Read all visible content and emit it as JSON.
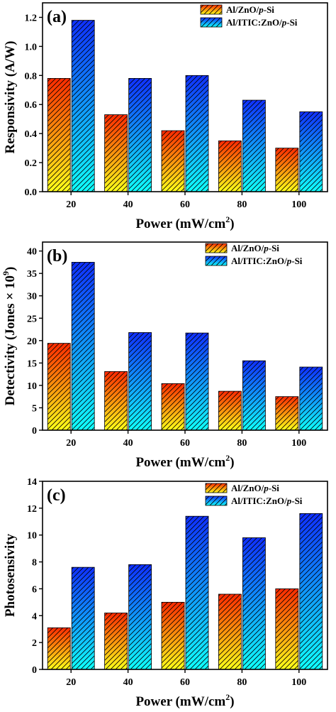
{
  "chart_data": [
    {
      "type": "bar",
      "panel_label": "(a)",
      "categories": [
        "20",
        "40",
        "60",
        "80",
        "100"
      ],
      "series": [
        {
          "name": "Al/ZnO/p-Si",
          "name_prefix": "Al/ZnO/",
          "name_italic": "p",
          "name_suffix": "-Si",
          "values": [
            0.78,
            0.53,
            0.42,
            0.35,
            0.3
          ]
        },
        {
          "name": "Al/ITIC:ZnO/p-Si",
          "name_prefix": "Al/ITIC:ZnO/",
          "name_italic": "p",
          "name_suffix": "-Si",
          "values": [
            1.18,
            0.78,
            0.8,
            0.63,
            0.55
          ]
        }
      ],
      "xlabel": "Power (mW/cm²)",
      "xlabel_main": "Power (mW/cm",
      "xlabel_sup": "2",
      "xlabel_end": ")",
      "ylabel": "Responsivity (A/W)",
      "ylabel_main": "Responsivity (A/W)",
      "ylabel_sup": "",
      "ylabel_end": "",
      "ylim": [
        0,
        1.3
      ],
      "yticks": [
        "0.0",
        "0.2",
        "0.4",
        "0.6",
        "0.8",
        "1.0",
        "1.2"
      ],
      "legend": "top-right",
      "grid": false
    },
    {
      "type": "bar",
      "panel_label": "(b)",
      "categories": [
        "20",
        "40",
        "60",
        "80",
        "100"
      ],
      "series": [
        {
          "name": "Al/ZnO/p-Si",
          "name_prefix": "Al/ZnO/",
          "name_italic": "p",
          "name_suffix": "-Si",
          "values": [
            19.4,
            13.1,
            10.4,
            8.7,
            7.5
          ]
        },
        {
          "name": "Al/ITIC:ZnO/p-Si",
          "name_prefix": "Al/ITIC:ZnO/",
          "name_italic": "p",
          "name_suffix": "-Si",
          "values": [
            37.5,
            21.8,
            21.7,
            15.5,
            14.1
          ]
        }
      ],
      "xlabel": "Power (mW/cm²)",
      "xlabel_main": "Power (mW/cm",
      "xlabel_sup": "2",
      "xlabel_end": ")",
      "ylabel": "Detectivity (Jones × 10⁹)",
      "ylabel_main": "Detectivity (Jones × 10",
      "ylabel_sup": "9",
      "ylabel_end": ")",
      "ylim": [
        0,
        42
      ],
      "yticks": [
        "0",
        "5",
        "10",
        "15",
        "20",
        "25",
        "30",
        "35",
        "40"
      ],
      "legend": "top-right",
      "grid": false
    },
    {
      "type": "bar",
      "panel_label": "(c)",
      "categories": [
        "20",
        "40",
        "60",
        "80",
        "100"
      ],
      "series": [
        {
          "name": "Al/ZnO/p-Si",
          "name_prefix": "Al/ZnO/",
          "name_italic": "p",
          "name_suffix": "-Si",
          "values": [
            3.1,
            4.2,
            5.0,
            5.6,
            6.0
          ]
        },
        {
          "name": "Al/ITIC:ZnO/p-Si",
          "name_prefix": "Al/ITIC:ZnO/",
          "name_italic": "p",
          "name_suffix": "-Si",
          "values": [
            7.6,
            7.8,
            11.4,
            9.8,
            11.6
          ]
        }
      ],
      "xlabel": "Power (mW/cm²)",
      "xlabel_main": "Power (mW/cm",
      "xlabel_sup": "2",
      "xlabel_end": ")",
      "ylabel": "Photosensivity",
      "ylabel_main": "Photosensivity",
      "ylabel_sup": "",
      "ylabel_end": "",
      "ylim": [
        0,
        14
      ],
      "yticks": [
        "0",
        "2",
        "4",
        "6",
        "8",
        "10",
        "12",
        "14"
      ],
      "legend": "top-right",
      "grid": false
    }
  ],
  "colors": {
    "series1_top": "#ff2a00",
    "series1_bottom": "#ffff1a",
    "series2_top": "#1030ff",
    "series2_bottom": "#10ffff",
    "hatch": "#000000"
  }
}
